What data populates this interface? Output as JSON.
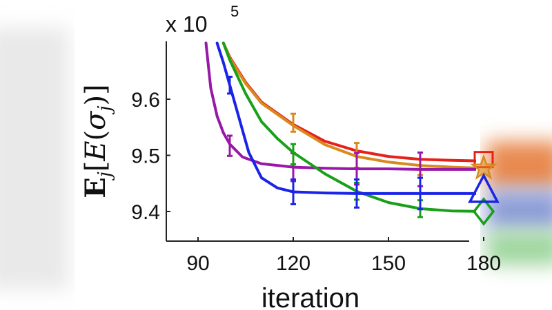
{
  "chart_data": {
    "type": "line",
    "title": "",
    "xlabel": "iteration",
    "ylabel": "E_j[E(σ_j)]",
    "ylabel_parts": {
      "op": "E",
      "sub": "j",
      "open": "[",
      "fn": "E",
      "paren_open": "(",
      "sym": "σ",
      "sym_sub": "j",
      "close": ")]"
    },
    "y_multiplier": {
      "base": "x 10",
      "exponent": "5"
    },
    "xlim": [
      80,
      182
    ],
    "ylim": [
      9.34,
      9.7
    ],
    "xticks": [
      90,
      120,
      150,
      180
    ],
    "yticks": [
      9.4,
      9.5,
      9.6
    ],
    "ytick_labels": [
      "9.4",
      "9.5",
      "9.6"
    ],
    "grid": false,
    "series": [
      {
        "name": "red",
        "color": "#e8201a",
        "marker": "square",
        "x": [
          98,
          100,
          105,
          110,
          120,
          130,
          140,
          150,
          160,
          170,
          180
        ],
        "y": [
          9.7,
          9.675,
          9.63,
          9.595,
          9.555,
          9.525,
          9.508,
          9.498,
          9.493,
          9.491,
          9.49
        ],
        "errorbars": []
      },
      {
        "name": "orange",
        "color": "#d88a1e",
        "marker": "star",
        "x": [
          98,
          100,
          105,
          110,
          120,
          130,
          140,
          150,
          160,
          170,
          180
        ],
        "y": [
          9.7,
          9.673,
          9.628,
          9.593,
          9.553,
          9.519,
          9.498,
          9.488,
          9.482,
          9.479,
          9.477
        ],
        "errorbars": [
          {
            "x": 120,
            "y": 9.558,
            "err": 0.016
          },
          {
            "x": 140,
            "y": 9.5,
            "err": 0.022
          },
          {
            "x": 160,
            "y": 9.485,
            "err": 0.02
          }
        ]
      },
      {
        "name": "purple",
        "color": "#9818a8",
        "marker": "none",
        "x": [
          92.5,
          94,
          96,
          98,
          100,
          104,
          110,
          120,
          130,
          140,
          150,
          160,
          170,
          180
        ],
        "y": [
          9.7,
          9.62,
          9.57,
          9.54,
          9.52,
          9.497,
          9.485,
          9.479,
          9.477,
          9.476,
          9.476,
          9.475,
          9.475,
          9.475
        ],
        "errorbars": [
          {
            "x": 100,
            "y": 9.517,
            "err": 0.018
          },
          {
            "x": 120,
            "y": 9.479,
            "err": 0.025
          },
          {
            "x": 140,
            "y": 9.476,
            "err": 0.028
          },
          {
            "x": 160,
            "y": 9.475,
            "err": 0.03
          }
        ]
      },
      {
        "name": "green",
        "color": "#19a019",
        "marker": "diamond",
        "x": [
          98,
          100,
          105,
          110,
          115,
          120,
          130,
          140,
          150,
          160,
          170,
          180
        ],
        "y": [
          9.7,
          9.67,
          9.61,
          9.56,
          9.53,
          9.505,
          9.467,
          9.436,
          9.416,
          9.405,
          9.401,
          9.4
        ],
        "errorbars": [
          {
            "x": 120,
            "y": 9.502,
            "err": 0.018
          },
          {
            "x": 140,
            "y": 9.436,
            "err": 0.015
          },
          {
            "x": 160,
            "y": 9.405,
            "err": 0.015
          }
        ]
      },
      {
        "name": "blue",
        "color": "#1a24e8",
        "marker": "triangle",
        "x": [
          96,
          98,
          100,
          102,
          104,
          106,
          110,
          115,
          120,
          130,
          140,
          150,
          160,
          170,
          180
        ],
        "y": [
          9.7,
          9.665,
          9.625,
          9.585,
          9.545,
          9.505,
          9.46,
          9.442,
          9.435,
          9.433,
          9.432,
          9.432,
          9.432,
          9.432,
          9.432
        ],
        "errorbars": [
          {
            "x": 100,
            "y": 9.625,
            "err": 0.015
          },
          {
            "x": 120,
            "y": 9.435,
            "err": 0.022
          },
          {
            "x": 140,
            "y": 9.432,
            "err": 0.025
          },
          {
            "x": 160,
            "y": 9.432,
            "err": 0.028
          }
        ]
      }
    ]
  }
}
